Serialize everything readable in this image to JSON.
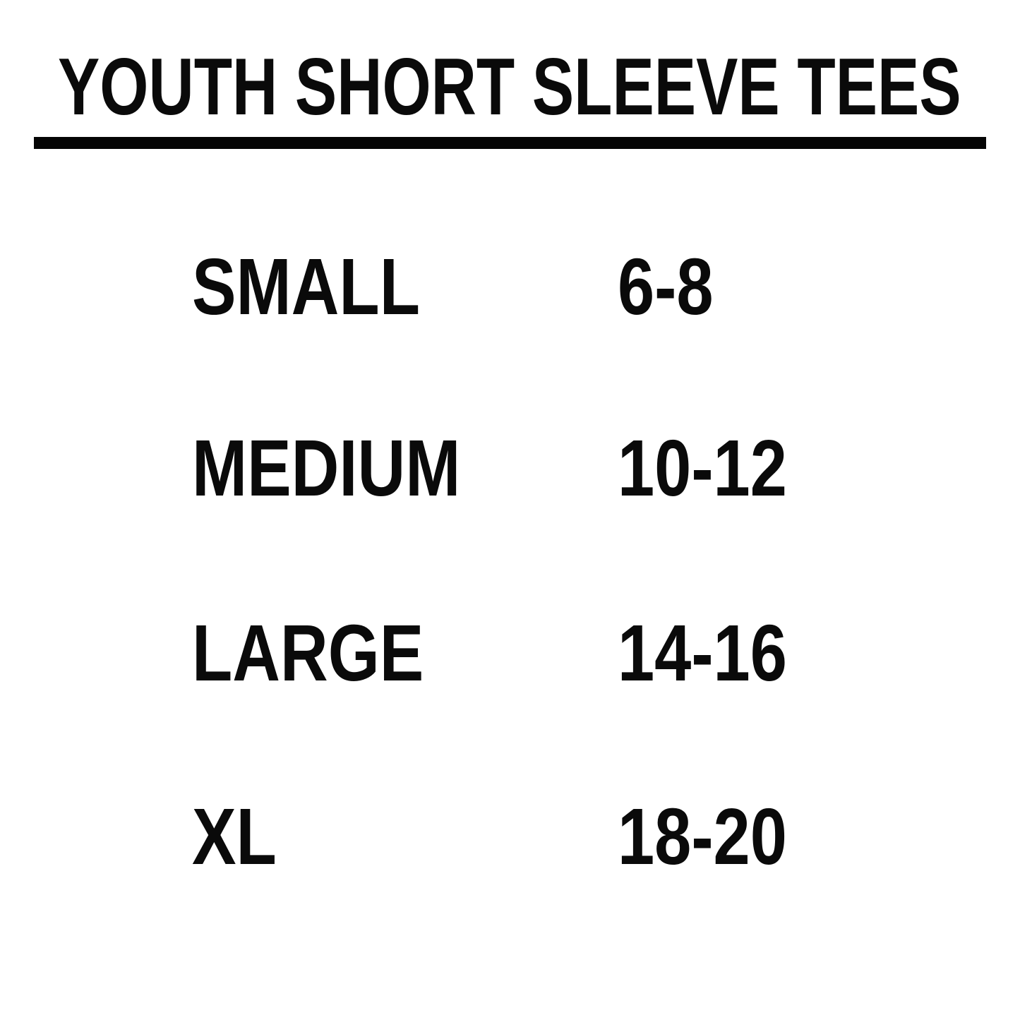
{
  "title": "YOUTH SHORT SLEEVE TEES",
  "table": {
    "rows": [
      {
        "size": "SMALL",
        "range": "6-8"
      },
      {
        "size": "MEDIUM",
        "range": "10-12"
      },
      {
        "size": "LARGE",
        "range": "14-16"
      },
      {
        "size": "XL",
        "range": "18-20"
      }
    ]
  },
  "chart_data": {
    "type": "table",
    "title": "YOUTH SHORT SLEEVE TEES",
    "rows": [
      [
        "SMALL",
        "6-8"
      ],
      [
        "MEDIUM",
        "10-12"
      ],
      [
        "LARGE",
        "14-16"
      ],
      [
        "XL",
        "18-20"
      ]
    ]
  },
  "colors": {
    "text": "#0a0a0a",
    "background": "#ffffff",
    "rule": "#050505"
  }
}
